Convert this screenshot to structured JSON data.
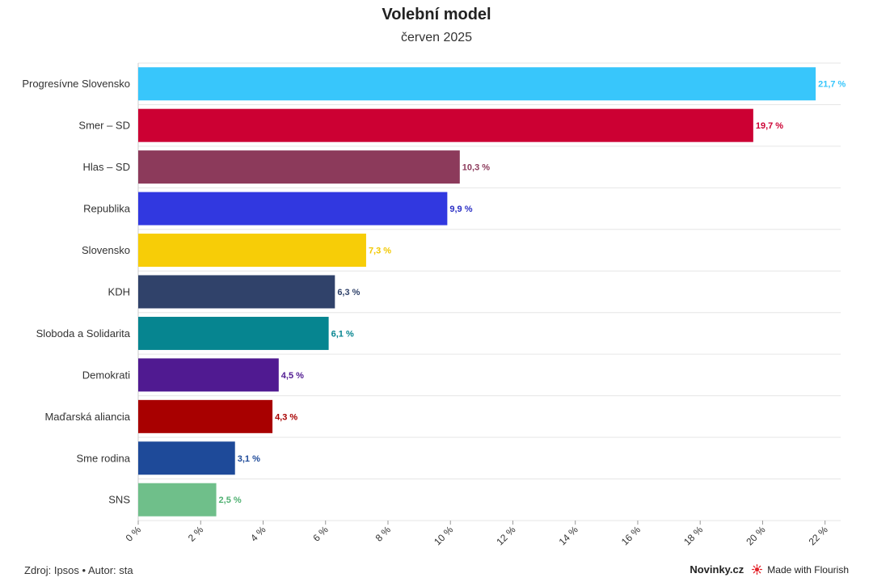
{
  "chart_data": {
    "type": "bar",
    "orientation": "horizontal",
    "title": "Volební model",
    "subtitle": "červen 2025",
    "categories": [
      "Progresívne Slovensko",
      "Smer – SD",
      "Hlas – SD",
      "Republika",
      "Slovensko",
      "KDH",
      "Sloboda a Solidarita",
      "Demokrati",
      "Maďarská aliancia",
      "Sme rodina",
      "SNS"
    ],
    "values": [
      21.7,
      19.7,
      10.3,
      9.9,
      7.3,
      6.3,
      6.1,
      4.5,
      4.3,
      3.1,
      2.5
    ],
    "value_labels": [
      "21,7 %",
      "19,7 %",
      "10,3 %",
      "9,9 %",
      "7,3 %",
      "6,3 %",
      "6,1 %",
      "4,5 %",
      "4,3 %",
      "3,1 %",
      "2,5 %"
    ],
    "colors": [
      "#38c6fb",
      "#cc0033",
      "#8c3a5b",
      "#3138e0",
      "#f7cd07",
      "#30426a",
      "#068590",
      "#501a91",
      "#a80000",
      "#1e4a99",
      "#6fbf8a"
    ],
    "label_colors": [
      "#38c6fb",
      "#cc0033",
      "#8c3a5b",
      "#2b2fc4",
      "#f2c800",
      "#30426a",
      "#068590",
      "#501a91",
      "#a80000",
      "#1e4a99",
      "#4fb071"
    ],
    "xlim": [
      0,
      22.5
    ],
    "xticks": [
      0,
      2,
      4,
      6,
      8,
      10,
      12,
      14,
      16,
      18,
      20,
      22
    ],
    "xtick_labels": [
      "0 %",
      "2 %",
      "4 %",
      "6 %",
      "8 %",
      "10 %",
      "12 %",
      "14 %",
      "16 %",
      "18 %",
      "20 %",
      "22 %"
    ],
    "grid": true
  },
  "footer": {
    "source": "Zdroj: Ipsos • Autor: sta",
    "brand": "Novinky.cz",
    "made_with": "Made with Flourish"
  }
}
